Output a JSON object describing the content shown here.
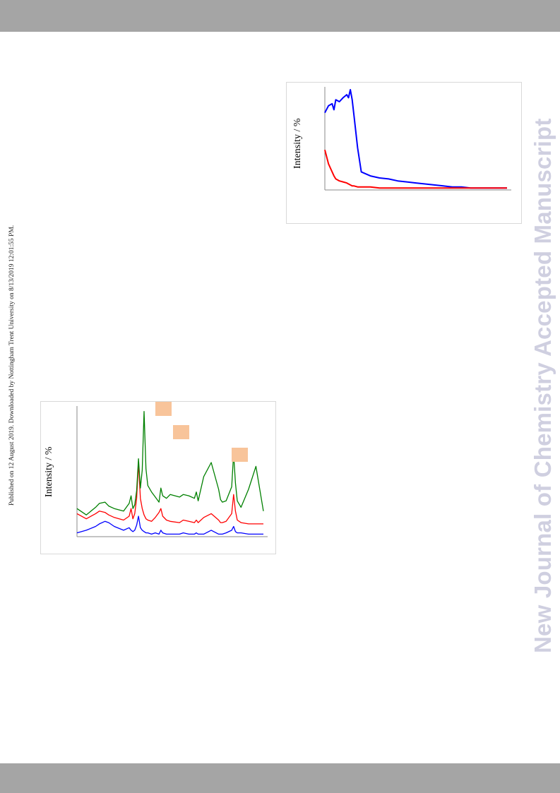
{
  "page": {
    "published_note": "Published on 12 August 2019. Downloaded by Nottingham Trent University on 8/13/2019 12:01:55 PM.",
    "watermark": "New Journal of Chemistry Accepted Manuscript"
  },
  "colors": {
    "header_bar": "#a5a5a5",
    "tag": "#f8c49a",
    "watermark": "#cfcfe0"
  },
  "chart_data": [
    {
      "type": "line",
      "id": "figure-top",
      "ylabel": "Intensity / %",
      "grid": false,
      "x": [
        0,
        2,
        4,
        5,
        6,
        8,
        10,
        12,
        13,
        14,
        15,
        16,
        18,
        20,
        25,
        30,
        35,
        40,
        45,
        50,
        55,
        60,
        65,
        70,
        75,
        80,
        85,
        90,
        95,
        100
      ],
      "series": [
        {
          "color": "#0000ff",
          "values": [
            77,
            84,
            86,
            80,
            90,
            88,
            92,
            95,
            92,
            100,
            90,
            74,
            42,
            18,
            14,
            12,
            11,
            9,
            8,
            7,
            6,
            5,
            4,
            3,
            3,
            2,
            2,
            2,
            2,
            2
          ]
        },
        {
          "color": "#ff0000",
          "values": [
            40,
            26,
            18,
            14,
            11,
            9,
            8,
            7,
            6,
            5,
            4,
            4,
            3,
            3,
            3,
            2,
            2,
            2,
            2,
            2,
            2,
            2,
            2,
            2,
            2,
            2,
            2,
            2,
            2,
            2
          ]
        }
      ]
    },
    {
      "type": "line",
      "id": "figure-bottom",
      "ylabel": "Intensity / %",
      "grid": false,
      "x": [
        0,
        5,
        10,
        12,
        15,
        17,
        20,
        25,
        28,
        29,
        30,
        31,
        32,
        33,
        34,
        35,
        36,
        37,
        38,
        40,
        42,
        44,
        45,
        46,
        48,
        50,
        55,
        57,
        60,
        63,
        64,
        65,
        68,
        72,
        76,
        77,
        78,
        80,
        83,
        84,
        85,
        86,
        88,
        92,
        96,
        100
      ],
      "series": [
        {
          "color": "#0000ff",
          "values": [
            3,
            5,
            8,
            10,
            12,
            11,
            8,
            5,
            7,
            5,
            4,
            5,
            9,
            16,
            7,
            5,
            4,
            3,
            3,
            2,
            3,
            2,
            5,
            3,
            2,
            2,
            2,
            3,
            2,
            2,
            3,
            2,
            2,
            5,
            2,
            2,
            2,
            3,
            5,
            8,
            4,
            3,
            3,
            2,
            2,
            2
          ]
        },
        {
          "color": "#ff0000",
          "values": [
            18,
            14,
            18,
            20,
            19,
            17,
            15,
            13,
            16,
            22,
            14,
            18,
            30,
            58,
            30,
            22,
            17,
            14,
            13,
            12,
            15,
            19,
            22,
            16,
            13,
            12,
            11,
            13,
            12,
            11,
            13,
            11,
            15,
            18,
            13,
            11,
            11,
            12,
            18,
            33,
            20,
            13,
            11,
            10,
            10,
            10
          ]
        },
        {
          "color": "#008000",
          "values": [
            22,
            17,
            23,
            26,
            27,
            24,
            22,
            20,
            26,
            32,
            22,
            25,
            36,
            61,
            38,
            52,
            98,
            53,
            40,
            35,
            31,
            27,
            38,
            32,
            30,
            33,
            31,
            33,
            32,
            30,
            35,
            28,
            47,
            58,
            37,
            29,
            27,
            28,
            39,
            65,
            42,
            28,
            23,
            37,
            55,
            20
          ]
        }
      ]
    }
  ]
}
